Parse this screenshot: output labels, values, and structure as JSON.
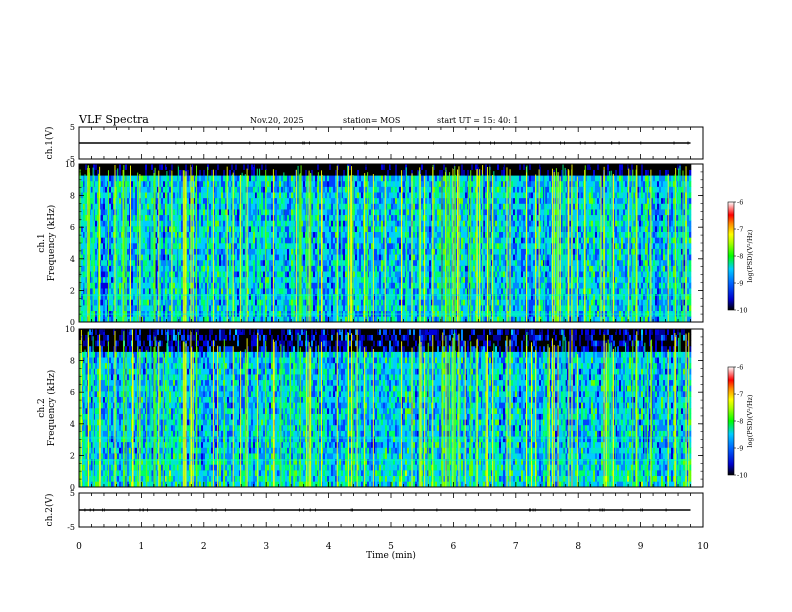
{
  "header": {
    "title": "VLF Spectra",
    "date": "Nov.20, 2025",
    "station": "station= MOS",
    "start_ut": "start  UT  =   15: 40: 1"
  },
  "colors": {
    "spectrogram_scale": [
      "#000000",
      "#0000cc",
      "#0066ff",
      "#00ccff",
      "#00e0a0",
      "#00ff00",
      "#aaff00",
      "#ffff00",
      "#ff8800",
      "#ff0000",
      "#ffffff"
    ]
  },
  "chart_data": [
    {
      "type": "line",
      "name": "ch1-voltage",
      "ylabel": "ch.1(V)",
      "ylim": [
        -5,
        5
      ],
      "yticks": [
        "5",
        "-5"
      ],
      "x": [
        0,
        9.8
      ],
      "y": [
        0,
        0
      ]
    },
    {
      "type": "heatmap",
      "name": "ch1-spectrogram",
      "ylabel": "ch.1\nFrequency (kHz)",
      "ylim": [
        0,
        10
      ],
      "yticks": [
        "0",
        "2",
        "4",
        "6",
        "8",
        "10"
      ],
      "xlim": [
        0,
        9.8
      ],
      "colorbar": {
        "label": "log(PSD)(V²/Hz)",
        "range": [
          -10,
          -6
        ],
        "ticks": [
          "-6",
          "-7",
          "-8",
          "-9",
          "-10"
        ]
      },
      "lines_khz": [
        0.5,
        1.7
      ]
    },
    {
      "type": "heatmap",
      "name": "ch2-spectrogram",
      "ylabel": "ch.2\nFrequency (kHz)",
      "ylim": [
        0,
        10
      ],
      "yticks": [
        "0",
        "2",
        "4",
        "6",
        "8",
        "10"
      ],
      "xlim": [
        0,
        9.8
      ],
      "colorbar": {
        "label": "log(PSD)(V²/Hz)",
        "range": [
          -10,
          -6
        ],
        "ticks": [
          "-6",
          "-7",
          "-8",
          "-9",
          "-10"
        ]
      },
      "lines_khz": [
        1.7,
        3.1
      ]
    },
    {
      "type": "line",
      "name": "ch2-voltage",
      "ylabel": "ch.2(V)",
      "ylim": [
        -5,
        5
      ],
      "yticks": [
        "5",
        "-5"
      ],
      "x": [
        0,
        9.8
      ],
      "y": [
        0,
        0
      ]
    }
  ],
  "xaxis": {
    "label": "Time  (min)",
    "xlim": [
      0,
      10
    ],
    "ticks": [
      "0",
      "1",
      "2",
      "3",
      "4",
      "5",
      "6",
      "7",
      "8",
      "9",
      "10"
    ]
  }
}
